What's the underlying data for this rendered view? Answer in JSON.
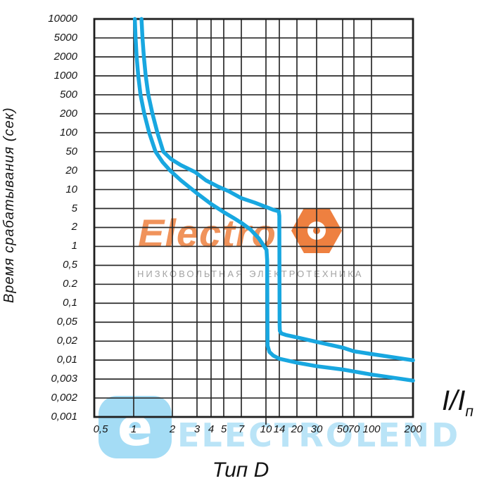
{
  "chart_data": {
    "type": "line",
    "title": "Тип D",
    "xlabel": "I/Iп",
    "ylabel": "Время срабатывания (сек)",
    "x_scale": "log (non-uniform hand-drawn)",
    "y_scale": "log (uniform spacing per labeled tick)",
    "grid": true,
    "x_ticks": [
      "0,5",
      "1",
      "2",
      "3",
      "4",
      "5",
      "7",
      "10",
      "14",
      "20",
      "30",
      "50",
      "70",
      "100",
      "200"
    ],
    "x_tick_values": [
      0.5,
      1,
      2,
      3,
      4,
      5,
      7,
      10,
      14,
      20,
      30,
      50,
      70,
      100,
      200
    ],
    "y_ticks": [
      "10000",
      "5000",
      "2000",
      "1000",
      "500",
      "200",
      "100",
      "50",
      "20",
      "10",
      "5",
      "2",
      "1",
      "0,5",
      "0.2",
      "0,1",
      "0,05",
      "0,02",
      "0,01",
      "0,003",
      "0,002",
      "0,001"
    ],
    "y_tick_values": [
      10000,
      5000,
      2000,
      1000,
      500,
      200,
      100,
      50,
      20,
      10,
      5,
      2,
      1,
      0.5,
      0.2,
      0.1,
      0.05,
      0.02,
      0.01,
      0.003,
      0.002,
      0.001
    ],
    "curve_color": "#18a7e0",
    "series": [
      {
        "name": "lower-trip-boundary",
        "points": [
          [
            1.02,
            10000
          ],
          [
            1.035,
            5000
          ],
          [
            1.055,
            2000
          ],
          [
            1.085,
            1000
          ],
          [
            1.13,
            500
          ],
          [
            1.21,
            200
          ],
          [
            1.32,
            100
          ],
          [
            1.48,
            50
          ],
          [
            1.68,
            30
          ],
          [
            1.92,
            20
          ],
          [
            2.3,
            14
          ],
          [
            3,
            8.7
          ],
          [
            4,
            5.9
          ],
          [
            5,
            4.2
          ],
          [
            6,
            3.2
          ],
          [
            7,
            2.5
          ],
          [
            8,
            1.85
          ],
          [
            9,
            1.35
          ],
          [
            9.8,
            0.98
          ],
          [
            10.15,
            0.88
          ],
          [
            10.3,
            0.6
          ],
          [
            10.38,
            0.05
          ],
          [
            10.42,
            0.017
          ],
          [
            10.9,
            0.0135
          ],
          [
            12,
            0.0118
          ],
          [
            14,
            0.0105
          ],
          [
            20,
            0.0085
          ],
          [
            30,
            0.0068
          ],
          [
            50,
            0.0055
          ],
          [
            100,
            0.004
          ],
          [
            200,
            0.0029
          ]
        ]
      },
      {
        "name": "upper-trip-boundary",
        "points": [
          [
            1.15,
            10000
          ],
          [
            1.17,
            5000
          ],
          [
            1.2,
            2000
          ],
          [
            1.24,
            1000
          ],
          [
            1.3,
            500
          ],
          [
            1.4,
            200
          ],
          [
            1.53,
            100
          ],
          [
            1.7,
            50
          ],
          [
            1.95,
            35
          ],
          [
            2.3,
            26
          ],
          [
            2.9,
            19
          ],
          [
            3.6,
            14
          ],
          [
            4.5,
            11.2
          ],
          [
            5.5,
            9.4
          ],
          [
            7,
            7.3
          ],
          [
            8.5,
            6.2
          ],
          [
            10,
            5.3
          ],
          [
            12,
            4.7
          ],
          [
            13.8,
            4.35
          ],
          [
            14.0,
            3.5
          ],
          [
            14.05,
            0.3
          ],
          [
            14.08,
            0.045
          ],
          [
            14.15,
            0.033
          ],
          [
            14.6,
            0.029
          ],
          [
            16,
            0.027
          ],
          [
            20,
            0.024
          ],
          [
            30,
            0.0195
          ],
          [
            50,
            0.0158
          ],
          [
            70,
            0.0138
          ],
          [
            100,
            0.0125
          ],
          [
            200,
            0.0099
          ]
        ]
      }
    ]
  },
  "labels": {
    "type_label": "Тип D",
    "x_axis_unit": "I/I",
    "x_axis_unit_sub": "п",
    "y_axis_title": "Время срабатывания (сек)"
  },
  "watermarks": {
    "center": {
      "brand": "Electro",
      "subtitle": "НИЗКОВОЛЬТНАЯ ЭЛЕКТРОТЕХНИКА",
      "brand_color": "#ef8a4e",
      "hexagon_color": "#ee8040"
    },
    "bottom": {
      "icon_letter": "e",
      "text": "ELECTROLEND",
      "color": "#aee0f6"
    }
  }
}
